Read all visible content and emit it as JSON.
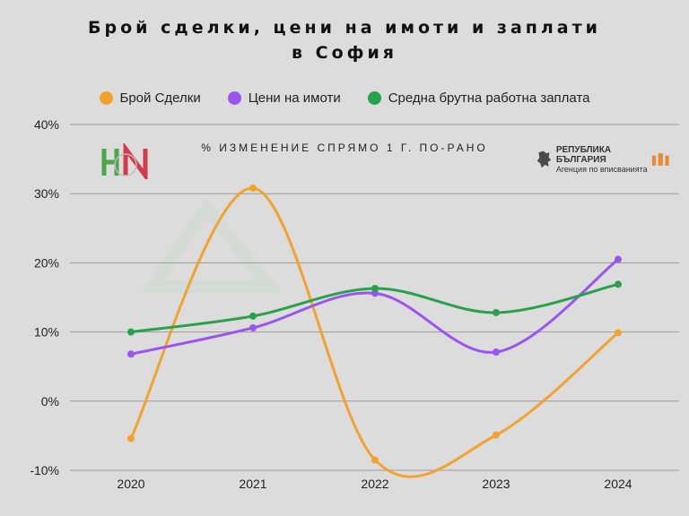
{
  "title_line1": "Брой сделки, цени на имоти и заплати",
  "title_line2": "в София",
  "subtitle": "% ИЗМЕНЕНИЕ СПРЯМО 1 Г. ПО-РАНО",
  "logos": {
    "left": "НИ",
    "registry_line1": "РЕПУБЛИКА БЪЛГАРИЯ",
    "registry_line2": "Агенция по вписванията"
  },
  "chart_data": {
    "type": "line",
    "title": "Брой сделки, цени на имоти и заплати в София",
    "subtitle": "% ИЗМЕНЕНИЕ СПРЯМО 1 Г. ПО-РАНО",
    "xlabel": "",
    "ylabel": "",
    "x": [
      "2020",
      "2021",
      "2022",
      "2023",
      "2024"
    ],
    "ylim": [
      -10,
      40
    ],
    "yticks": [
      "-10%",
      "0%",
      "10%",
      "20%",
      "30%",
      "40%"
    ],
    "grid": true,
    "legend_position": "top",
    "series": [
      {
        "name": "Брой Сделки",
        "color": "#f2a22e",
        "values": [
          -5.4,
          30.8,
          -8.5,
          -4.9,
          9.9
        ]
      },
      {
        "name": "Цени на имоти",
        "color": "#9a55ef",
        "values": [
          6.8,
          10.6,
          15.6,
          7.1,
          20.5
        ]
      },
      {
        "name": "Средна брутна работна заплата",
        "color": "#27a14b",
        "values": [
          10.0,
          12.3,
          16.3,
          12.8,
          16.9
        ]
      }
    ]
  }
}
